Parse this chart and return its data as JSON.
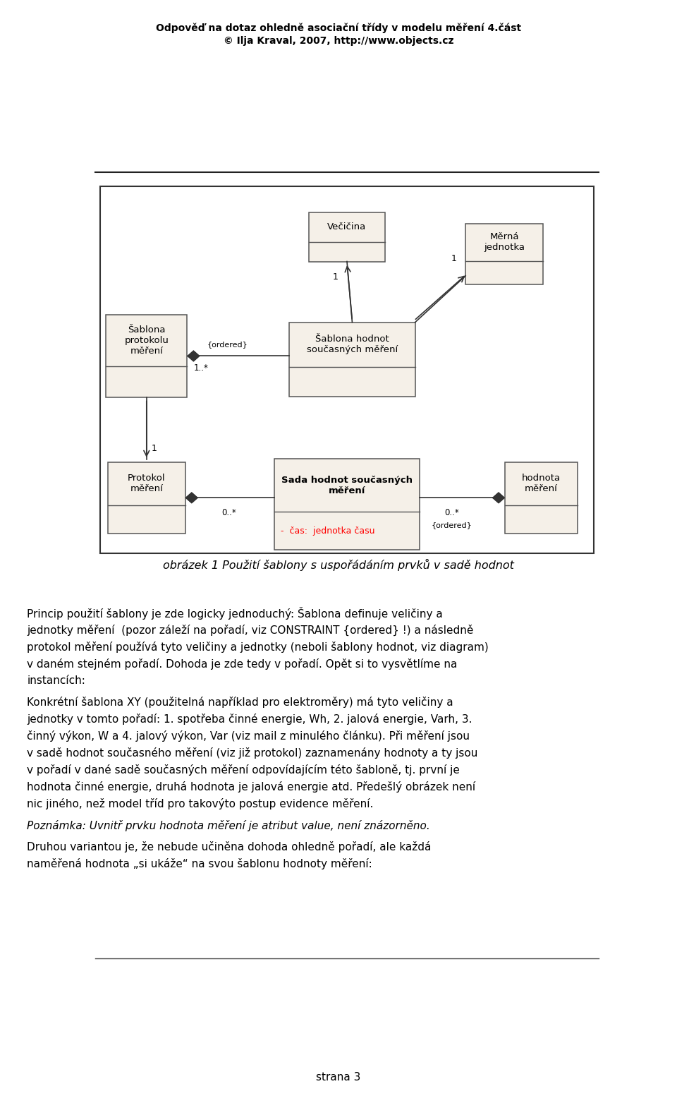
{
  "title_line1": "Odpověď na dotaz ohledně asociační třídy v modelu měření 4.část",
  "title_line2": "© Ilja Kraval, 2007, http://www.objects.cz",
  "page_num": "strana 3",
  "box_fill": "#f5f0e8",
  "box_edge": "#555555",
  "caption": "obrázek 1 Použití šablony s uspořádáním prvků v sadě hodnot",
  "para1_lines": [
    "Princip použití šablony je zde logicky jednoduchý: Šablona definuje veličiny a",
    "jednotky měření  (pozor záleží na pořadí, viz CONSTRAINT {ordered} !) a následně",
    "protokol měření používá tyto veličiny a jednotky (neboli šablony hodnot, viz diagram)",
    "v daném stejném pořadí. Dohoda je zde tedy v pořadí. Opět si to vysvětlíme na",
    "instancích:"
  ],
  "para2_lines": [
    "Konkrétní šablona XY (použitelná například pro elektroměry) má tyto veličiny a",
    "jednotky v tomto pořadí: 1. spotřeba činné energie, Wh, 2. jalová energie, Varh, 3.",
    "činný výkon, W a 4. jalový výkon, Var (viz mail z minulého článku). Při měření jsou",
    "v sadě hodnot současného měření (viz již protokol) zaznamenány hodnoty a ty jsou",
    "v pořadí v dané sadě současných měření odpovídajícím této šabloně, tj. první je",
    "hodnota činné energie, druhá hodnota je jalová energie atd. Předešlý obrázek není",
    "nic jiného, než model tříd pro takovýto postup evidence měření."
  ],
  "para3_lines": [
    "Poznámka: Uvnitř prvku hodnota měření je atribut value, není znázorněno."
  ],
  "para4_lines": [
    "Druhou variantou je, že nebude učiněna dohoda ohledně pořadí, ale každá",
    "naměřená hodnota „si ukáže“ na svou šablonu hodnoty měření:"
  ]
}
